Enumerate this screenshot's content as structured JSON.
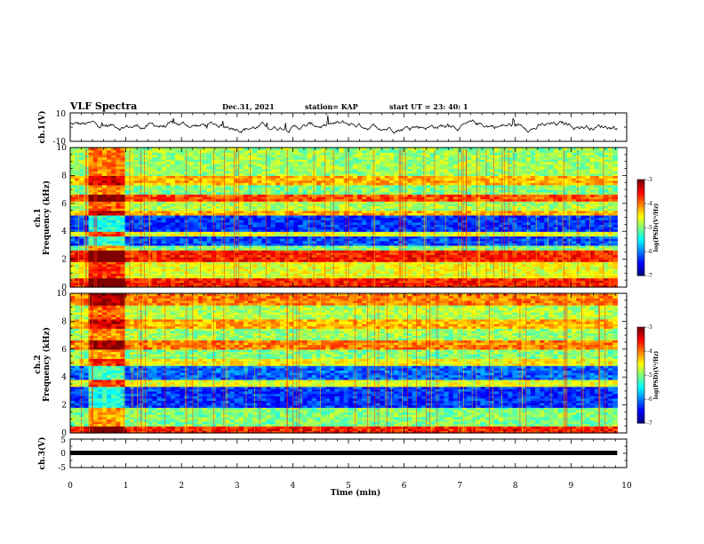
{
  "header": {
    "title": "VLF Spectra",
    "date": "Dec.31, 2021",
    "station": "station= KAP",
    "start_ut": "start  UT =   23: 40: 1"
  },
  "chart_data": [
    {
      "type": "line",
      "name": "ch1-waveform",
      "ylabel": "ch.1(V)",
      "ylim": [
        -10,
        10
      ],
      "yticks": [
        "10",
        "-10"
      ],
      "x_range_min": [
        0,
        9.83
      ],
      "description_level": "noisy waveform around 0 V, amplitude roughly -5 to 7 V"
    },
    {
      "type": "heatmap",
      "name": "ch1-spectrogram",
      "ylabel": "ch.1\nFrequency (kHz)",
      "xlim": [
        0,
        10
      ],
      "ylim": [
        0,
        10
      ],
      "yticks": [
        "0",
        "2",
        "4",
        "6",
        "8",
        "10"
      ],
      "data_extent_min": [
        0,
        9.83
      ],
      "colorbar": {
        "label": "log(PSD)(V²/Hz)",
        "range": [
          -7,
          -3
        ],
        "ticks": [
          "-3",
          "-4",
          "-5",
          "-6",
          "-7"
        ]
      },
      "bands": [
        {
          "f0": 0.0,
          "f1": 0.7,
          "level": -3.6
        },
        {
          "f0": 0.7,
          "f1": 1.9,
          "level": -4.6
        },
        {
          "f0": 1.9,
          "f1": 2.6,
          "level": -3.6
        },
        {
          "f0": 2.6,
          "f1": 3.0,
          "level": -5.0
        },
        {
          "f0": 3.0,
          "f1": 3.6,
          "level": -6.2
        },
        {
          "f0": 3.6,
          "f1": 4.0,
          "level": -4.6
        },
        {
          "f0": 4.0,
          "f1": 5.2,
          "level": -6.3
        },
        {
          "f0": 5.2,
          "f1": 5.5,
          "level": -4.2
        },
        {
          "f0": 5.5,
          "f1": 6.1,
          "level": -4.8
        },
        {
          "f0": 6.1,
          "f1": 6.6,
          "level": -3.8
        },
        {
          "f0": 6.6,
          "f1": 7.3,
          "level": -5.0
        },
        {
          "f0": 7.3,
          "f1": 8.0,
          "level": -4.2
        },
        {
          "f0": 8.0,
          "f1": 10.0,
          "level": -4.9
        }
      ],
      "burst_interval_min": [
        0.35,
        1.0
      ]
    },
    {
      "type": "heatmap",
      "name": "ch2-spectrogram",
      "ylabel": "ch.2\nFrequency (kHz)",
      "xlim": [
        0,
        10
      ],
      "ylim": [
        0,
        10
      ],
      "yticks": [
        "0",
        "2",
        "4",
        "6",
        "8",
        "10"
      ],
      "data_extent_min": [
        0,
        9.83
      ],
      "colorbar": {
        "label": "log(PSD)(V²/Hz)",
        "range": [
          -7,
          -3
        ],
        "ticks": [
          "-3",
          "-4",
          "-5",
          "-6",
          "-7"
        ]
      },
      "bands": [
        {
          "f0": 0.0,
          "f1": 0.5,
          "level": -3.6
        },
        {
          "f0": 0.5,
          "f1": 1.9,
          "level": -5.0
        },
        {
          "f0": 1.9,
          "f1": 3.4,
          "level": -6.3
        },
        {
          "f0": 3.4,
          "f1": 3.8,
          "level": -4.6
        },
        {
          "f0": 3.8,
          "f1": 4.8,
          "level": -6.1
        },
        {
          "f0": 4.8,
          "f1": 5.4,
          "level": -4.5
        },
        {
          "f0": 5.4,
          "f1": 6.0,
          "level": -5.0
        },
        {
          "f0": 6.0,
          "f1": 6.6,
          "level": -4.0
        },
        {
          "f0": 6.6,
          "f1": 7.5,
          "level": -4.9
        },
        {
          "f0": 7.5,
          "f1": 8.2,
          "level": -4.2
        },
        {
          "f0": 8.2,
          "f1": 9.1,
          "level": -4.8
        },
        {
          "f0": 9.1,
          "f1": 10.0,
          "level": -4.0
        }
      ],
      "burst_interval_min": [
        0.35,
        1.0
      ]
    },
    {
      "type": "line",
      "name": "ch3-signal",
      "ylabel": "ch.3(V)",
      "ylim": [
        -5,
        5
      ],
      "yticks": [
        "5",
        "0",
        "-5"
      ],
      "constant_value": 0,
      "x_range_min": [
        0,
        9.83
      ]
    }
  ],
  "xaxis": {
    "label": "Time (min)",
    "ticks": [
      "0",
      "1",
      "2",
      "3",
      "4",
      "5",
      "6",
      "7",
      "8",
      "9",
      "10"
    ],
    "xlim": [
      0,
      10
    ]
  },
  "colors": {
    "cmap": [
      "#00007f",
      "#0000ff",
      "#007fff",
      "#00ffff",
      "#7fff7f",
      "#ffff00",
      "#ff7f00",
      "#ff0000",
      "#7f0000"
    ]
  }
}
